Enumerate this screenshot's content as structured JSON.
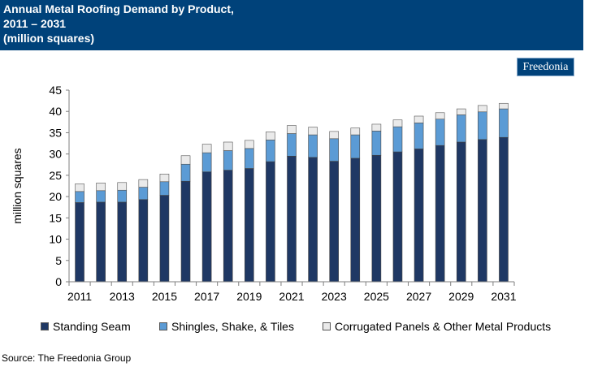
{
  "header": {
    "line1": "Annual Metal Roofing Demand by Product,",
    "line2": "2011 – 2031",
    "line3": "(million squares)"
  },
  "logo_text": "Freedonia",
  "source": "Source: The Freedonia Group",
  "chart_data": {
    "type": "bar",
    "stacked": true,
    "title": "Annual Metal Roofing Demand by Product, 2011 – 2031 (million squares)",
    "xlabel": "",
    "ylabel": "million squares",
    "ylim": [
      0,
      45
    ],
    "yticks": [
      0,
      5,
      10,
      15,
      20,
      25,
      30,
      35,
      40,
      45
    ],
    "categories": [
      "2011",
      "2012",
      "2013",
      "2014",
      "2015",
      "2016",
      "2017",
      "2018",
      "2019",
      "2020",
      "2021",
      "2022",
      "2023",
      "2024",
      "2025",
      "2026",
      "2027",
      "2028",
      "2029",
      "2030",
      "2031"
    ],
    "xtick_labels": [
      "2011",
      "2013",
      "2015",
      "2017",
      "2019",
      "2021",
      "2023",
      "2025",
      "2027",
      "2029",
      "2031"
    ],
    "series": [
      {
        "name": "Standing Seam",
        "color": "#1f3864",
        "values": [
          18.6,
          18.7,
          18.7,
          19.3,
          20.3,
          23.6,
          25.8,
          26.2,
          26.6,
          28.2,
          29.5,
          29.2,
          28.3,
          29.0,
          29.7,
          30.5,
          31.2,
          32.0,
          32.8,
          33.4,
          33.9
        ]
      },
      {
        "name": "Shingles, Shake, & Tiles",
        "color": "#5b9bd5",
        "values": [
          2.6,
          2.7,
          2.8,
          2.9,
          3.2,
          4.0,
          4.5,
          4.6,
          4.7,
          5.1,
          5.3,
          5.3,
          5.3,
          5.5,
          5.7,
          5.9,
          6.1,
          6.2,
          6.4,
          6.5,
          6.7
        ]
      },
      {
        "name": "Corrugated Panels & Other Metal Products",
        "color": "#eaeaea",
        "values": [
          1.8,
          1.8,
          1.8,
          1.8,
          1.8,
          2.0,
          2.0,
          2.0,
          1.9,
          1.9,
          1.9,
          1.8,
          1.7,
          1.6,
          1.6,
          1.6,
          1.6,
          1.5,
          1.4,
          1.5,
          1.3
        ]
      }
    ],
    "legend_position": "bottom"
  }
}
